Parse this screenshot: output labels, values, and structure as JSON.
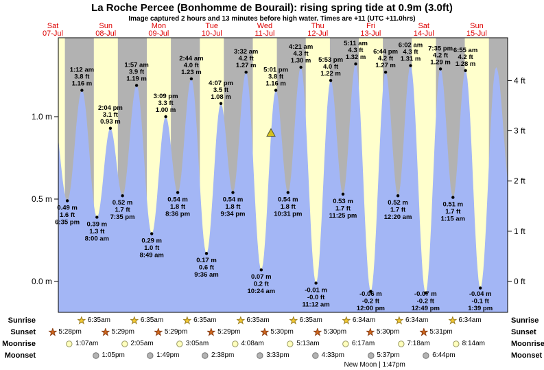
{
  "title": "La Roche Percee (Bonhomme de Bourail): rising  spring tide at 0.9m (3.0ft)",
  "subtitle": "Image captured 2 hours and 13 minutes before high water. Times are +11 (UTC +11.0hrs)",
  "colors": {
    "day_band": "#ffffcc",
    "night_band": "#b2b2b2",
    "tide_fill": "#a3b6f5",
    "day_label": "#dd0000",
    "marker_fill": "#d4c11f",
    "marker_stroke": "#55552a"
  },
  "axes": {
    "left_unit": "m",
    "right_unit": "ft",
    "left_ticks": [
      {
        "value": 0.0,
        "label": "0.0 m"
      },
      {
        "value": 0.5,
        "label": "0.5 m"
      },
      {
        "value": 1.0,
        "label": "1.0 m"
      }
    ],
    "right_ticks": [
      {
        "value": 0,
        "label": "0 ft"
      },
      {
        "value": 1,
        "label": "1 ft"
      },
      {
        "value": 2,
        "label": "2 ft"
      },
      {
        "value": 3,
        "label": "3 ft"
      },
      {
        "value": 4,
        "label": "4 ft"
      }
    ]
  },
  "days": [
    {
      "name": "Sat",
      "date": "07-Jul"
    },
    {
      "name": "Sun",
      "date": "08-Jul"
    },
    {
      "name": "Mon",
      "date": "09-Jul"
    },
    {
      "name": "Tue",
      "date": "10-Jul"
    },
    {
      "name": "Wed",
      "date": "11-Jul"
    },
    {
      "name": "Thu",
      "date": "12-Jul"
    },
    {
      "name": "Fri",
      "date": "13-Jul"
    },
    {
      "name": "Sat",
      "date": "14-Jul"
    },
    {
      "name": "Sun",
      "date": "15-Jul"
    }
  ],
  "chart_data": {
    "type": "area",
    "title": "Tide height curve, La Roche Percee (Bonhomme de Bourail), Jul 07 - Jul 15",
    "x_axis": "Time (days, UTC +11)",
    "y_axis_left": "Height (m)",
    "y_axis_right": "Height (ft)",
    "y_range_m": [
      -0.19,
      1.48
    ],
    "time_range_hours": [
      14.5,
      218
    ],
    "night_bands_hours": [
      [
        17.47,
        30.58
      ],
      [
        41.48,
        54.58
      ],
      [
        65.48,
        78.58
      ],
      [
        89.48,
        102.58
      ],
      [
        113.5,
        126.58
      ],
      [
        137.5,
        150.57
      ],
      [
        161.5,
        174.57
      ],
      [
        185.52,
        198.57
      ],
      [
        209.52,
        218
      ]
    ],
    "tide_events": [
      {
        "type": "high",
        "hours": 11.9,
        "height_m": 1.05,
        "offchart": true
      },
      {
        "type": "low",
        "hours": 18.58,
        "height_m": 0.49,
        "m_label": "0.49 m",
        "ft_label": "1.6 ft",
        "time_label": "6:35 pm"
      },
      {
        "type": "high",
        "hours": 25.2,
        "height_m": 1.16,
        "m_label": "1.16 m",
        "ft_label": "3.8 ft",
        "time_label": "1:12 am"
      },
      {
        "type": "low",
        "hours": 32.0,
        "height_m": 0.39,
        "m_label": "0.39 m",
        "ft_label": "1.3 ft",
        "time_label": "8:00 am"
      },
      {
        "type": "high",
        "hours": 38.07,
        "height_m": 0.93,
        "m_label": "0.93 m",
        "ft_label": "3.1 ft",
        "time_label": "2:04 pm"
      },
      {
        "type": "low",
        "hours": 43.58,
        "height_m": 0.52,
        "m_label": "0.52 m",
        "ft_label": "1.7 ft",
        "time_label": "7:35 pm"
      },
      {
        "type": "high",
        "hours": 49.95,
        "height_m": 1.19,
        "m_label": "1.19 m",
        "ft_label": "3.9 ft",
        "time_label": "1:57 am"
      },
      {
        "type": "low",
        "hours": 56.82,
        "height_m": 0.29,
        "m_label": "0.29 m",
        "ft_label": "1.0 ft",
        "time_label": "8:49 am"
      },
      {
        "type": "high",
        "hours": 63.15,
        "height_m": 1.0,
        "m_label": "1.00 m",
        "ft_label": "3.3 ft",
        "time_label": "3:09 pm"
      },
      {
        "type": "low",
        "hours": 68.6,
        "height_m": 0.54,
        "m_label": "0.54 m",
        "ft_label": "1.8 ft",
        "time_label": "8:36 pm"
      },
      {
        "type": "high",
        "hours": 74.73,
        "height_m": 1.23,
        "m_label": "1.23 m",
        "ft_label": "4.0 ft",
        "time_label": "2:44 am"
      },
      {
        "type": "low",
        "hours": 81.6,
        "height_m": 0.17,
        "m_label": "0.17 m",
        "ft_label": "0.6 ft",
        "time_label": "9:36 am"
      },
      {
        "type": "high",
        "hours": 88.12,
        "height_m": 1.08,
        "m_label": "1.08 m",
        "ft_label": "3.5 ft",
        "time_label": "4:07 pm"
      },
      {
        "type": "low",
        "hours": 93.57,
        "height_m": 0.54,
        "m_label": "0.54 m",
        "ft_label": "1.8 ft",
        "time_label": "9:34 pm"
      },
      {
        "type": "high",
        "hours": 99.53,
        "height_m": 1.27,
        "m_label": "1.27 m",
        "ft_label": "4.2 ft",
        "time_label": "3:32 am"
      },
      {
        "type": "low",
        "hours": 106.4,
        "height_m": 0.07,
        "m_label": "0.07 m",
        "ft_label": "0.2 ft",
        "time_label": "10:24 am"
      },
      {
        "type": "high",
        "hours": 113.02,
        "height_m": 1.16,
        "m_label": "1.16 m",
        "ft_label": "3.8 ft",
        "time_label": "5:01 pm"
      },
      {
        "type": "low",
        "hours": 118.52,
        "height_m": 0.54,
        "m_label": "0.54 m",
        "ft_label": "1.8 ft",
        "time_label": "10:31 pm"
      },
      {
        "type": "high",
        "hours": 124.35,
        "height_m": 1.3,
        "m_label": "1.30 m",
        "ft_label": "4.3 ft",
        "time_label": "4:21 am"
      },
      {
        "type": "low",
        "hours": 131.2,
        "height_m": -0.01,
        "m_label": "-0.01 m",
        "ft_label": "-0.0 ft",
        "time_label": "11:12 am"
      },
      {
        "type": "high",
        "hours": 137.88,
        "height_m": 1.22,
        "m_label": "1.22 m",
        "ft_label": "4.0 ft",
        "time_label": "5:53 pm"
      },
      {
        "type": "low",
        "hours": 143.42,
        "height_m": 0.53,
        "m_label": "0.53 m",
        "ft_label": "1.7 ft",
        "time_label": "11:25 pm"
      },
      {
        "type": "high",
        "hours": 149.18,
        "height_m": 1.32,
        "m_label": "1.32 m",
        "ft_label": "4.3 ft",
        "time_label": "5:11 am"
      },
      {
        "type": "low",
        "hours": 156.0,
        "height_m": -0.06,
        "m_label": "-0.06 m",
        "ft_label": "-0.2 ft",
        "time_label": "12:00 pm"
      },
      {
        "type": "high",
        "hours": 162.73,
        "height_m": 1.27,
        "m_label": "1.27 m",
        "ft_label": "4.2 ft",
        "time_label": "6:44 pm"
      },
      {
        "type": "low",
        "hours": 168.33,
        "height_m": 0.52,
        "m_label": "0.52 m",
        "ft_label": "1.7 ft",
        "time_label": "12:20 am"
      },
      {
        "type": "high",
        "hours": 174.03,
        "height_m": 1.31,
        "m_label": "1.31 m",
        "ft_label": "4.3 ft",
        "time_label": "6:02 am"
      },
      {
        "type": "low",
        "hours": 180.82,
        "height_m": -0.07,
        "m_label": "-0.07 m",
        "ft_label": "-0.2 ft",
        "time_label": "12:49 pm"
      },
      {
        "type": "high",
        "hours": 187.58,
        "height_m": 1.29,
        "m_label": "1.29 m",
        "ft_label": "4.2 ft",
        "time_label": "7:35 pm"
      },
      {
        "type": "low",
        "hours": 193.25,
        "height_m": 0.51,
        "m_label": "0.51 m",
        "ft_label": "1.7 ft",
        "time_label": "1:15 am"
      },
      {
        "type": "high",
        "hours": 198.92,
        "height_m": 1.28,
        "m_label": "1.28 m",
        "ft_label": "4.2 ft",
        "time_label": "6:55 am"
      },
      {
        "type": "low",
        "hours": 205.65,
        "height_m": -0.04,
        "m_label": "-0.04 m",
        "ft_label": "-0.1 ft",
        "time_label": "1:39 pm"
      },
      {
        "type": "high",
        "hours": 212.8,
        "height_m": 1.3,
        "offchart": true
      },
      {
        "type": "low",
        "hours": 219.5,
        "height_m": 0.52,
        "offchart": true
      }
    ],
    "current_marker": {
      "hours": 110.8,
      "height_m": 0.9,
      "label": "current tide level 0.9m, rising"
    }
  },
  "astro": {
    "rows": [
      {
        "label": "Sunrise",
        "icon": {
          "shape": "star",
          "fill": "#f2c832",
          "stroke": "#9a7d20",
          "name": "sunrise-icon"
        },
        "items": [
          {
            "time": "6:35am",
            "hours": 30.58
          },
          {
            "time": "6:35am",
            "hours": 54.58
          },
          {
            "time": "6:35am",
            "hours": 78.58
          },
          {
            "time": "6:35am",
            "hours": 102.58
          },
          {
            "time": "6:35am",
            "hours": 126.58
          },
          {
            "time": "6:34am",
            "hours": 150.57
          },
          {
            "time": "6:34am",
            "hours": 174.57
          },
          {
            "time": "6:34am",
            "hours": 198.57
          }
        ]
      },
      {
        "label": "Sunset",
        "icon": {
          "shape": "star",
          "fill": "#d2691e",
          "stroke": "#8a3d12",
          "name": "sunset-icon"
        },
        "items": [
          {
            "time": "5:28pm",
            "hours": 17.47
          },
          {
            "time": "5:29pm",
            "hours": 41.48
          },
          {
            "time": "5:29pm",
            "hours": 65.48
          },
          {
            "time": "5:29pm",
            "hours": 89.48
          },
          {
            "time": "5:30pm",
            "hours": 113.5
          },
          {
            "time": "5:30pm",
            "hours": 137.5
          },
          {
            "time": "5:30pm",
            "hours": 161.5
          },
          {
            "time": "5:31pm",
            "hours": 185.52
          }
        ]
      },
      {
        "label": "Moonrise",
        "icon": {
          "shape": "circle",
          "fill": "#ffffbb",
          "stroke": "#999966",
          "name": "moonrise-icon"
        },
        "items": [
          {
            "time": "1:07am",
            "hours": 25.12
          },
          {
            "time": "2:05am",
            "hours": 50.08
          },
          {
            "time": "3:05am",
            "hours": 75.08
          },
          {
            "time": "4:08am",
            "hours": 100.13
          },
          {
            "time": "5:13am",
            "hours": 125.22
          },
          {
            "time": "6:17am",
            "hours": 150.28
          },
          {
            "time": "7:18am",
            "hours": 175.3
          },
          {
            "time": "8:14am",
            "hours": 200.23
          }
        ]
      },
      {
        "label": "Moonset",
        "icon": {
          "shape": "circle",
          "fill": "#b3b3b3",
          "stroke": "#737373",
          "name": "moonset-icon"
        },
        "items": [
          {
            "time": "1:05pm",
            "hours": 37.08
          },
          {
            "time": "1:49pm",
            "hours": 61.82
          },
          {
            "time": "2:38pm",
            "hours": 86.63
          },
          {
            "time": "3:33pm",
            "hours": 111.55
          },
          {
            "time": "4:33pm",
            "hours": 136.55
          },
          {
            "time": "5:37pm",
            "hours": 161.62
          },
          {
            "time": "6:44pm",
            "hours": 186.73
          }
        ]
      }
    ],
    "new_moon": {
      "text": "New Moon | 1:47pm",
      "hours": 157.78
    }
  }
}
